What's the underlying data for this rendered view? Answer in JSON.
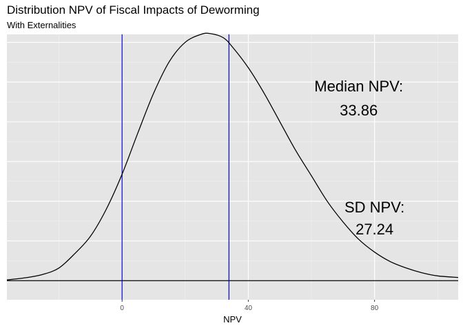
{
  "chart_data": {
    "type": "line",
    "title": "Distribution NPV of Fiscal Impacts of Deworming",
    "subtitle": "With Externalities",
    "xlabel": "NPV",
    "ylabel": "",
    "xlim": [
      -36.5,
      106.5
    ],
    "ylim": [
      -0.0012,
      0.0155
    ],
    "x_ticks": [
      0,
      40,
      80
    ],
    "x_minor_ticks": [
      -20,
      20,
      60,
      100
    ],
    "grid": true,
    "series": [
      {
        "color": "#000000",
        "x": [
          -36.5,
          -30,
          -25,
          -20,
          -15,
          -10,
          -5,
          0,
          5,
          10,
          15,
          20,
          25,
          28,
          32,
          35,
          40,
          45,
          50,
          55,
          60,
          65,
          70,
          75,
          80,
          85,
          90,
          95,
          100,
          106.5
        ],
        "y": [
          5e-05,
          0.0002,
          0.0004,
          0.0008,
          0.0017,
          0.0028,
          0.0045,
          0.0067,
          0.0093,
          0.0118,
          0.0138,
          0.015,
          0.0155,
          0.01555,
          0.0153,
          0.0147,
          0.0134,
          0.0118,
          0.01,
          0.0082,
          0.0066,
          0.005,
          0.0037,
          0.0026,
          0.0018,
          0.0012,
          0.0008,
          0.0005,
          0.0003,
          0.0002
        ]
      }
    ],
    "vlines": [
      {
        "x": 0,
        "color": "#0000cc"
      },
      {
        "x": 33.86,
        "color": "#0000cc"
      }
    ],
    "hline": {
      "y": 0,
      "color": "#000000"
    },
    "annotations": [
      {
        "text": "Median NPV:",
        "x": 75,
        "y": 0.0119
      },
      {
        "text": "33.86",
        "x": 75,
        "y": 0.0104
      },
      {
        "text": "SD NPV:",
        "x": 80,
        "y": 0.0043
      },
      {
        "text": "27.24",
        "x": 80,
        "y": 0.0029
      }
    ]
  }
}
